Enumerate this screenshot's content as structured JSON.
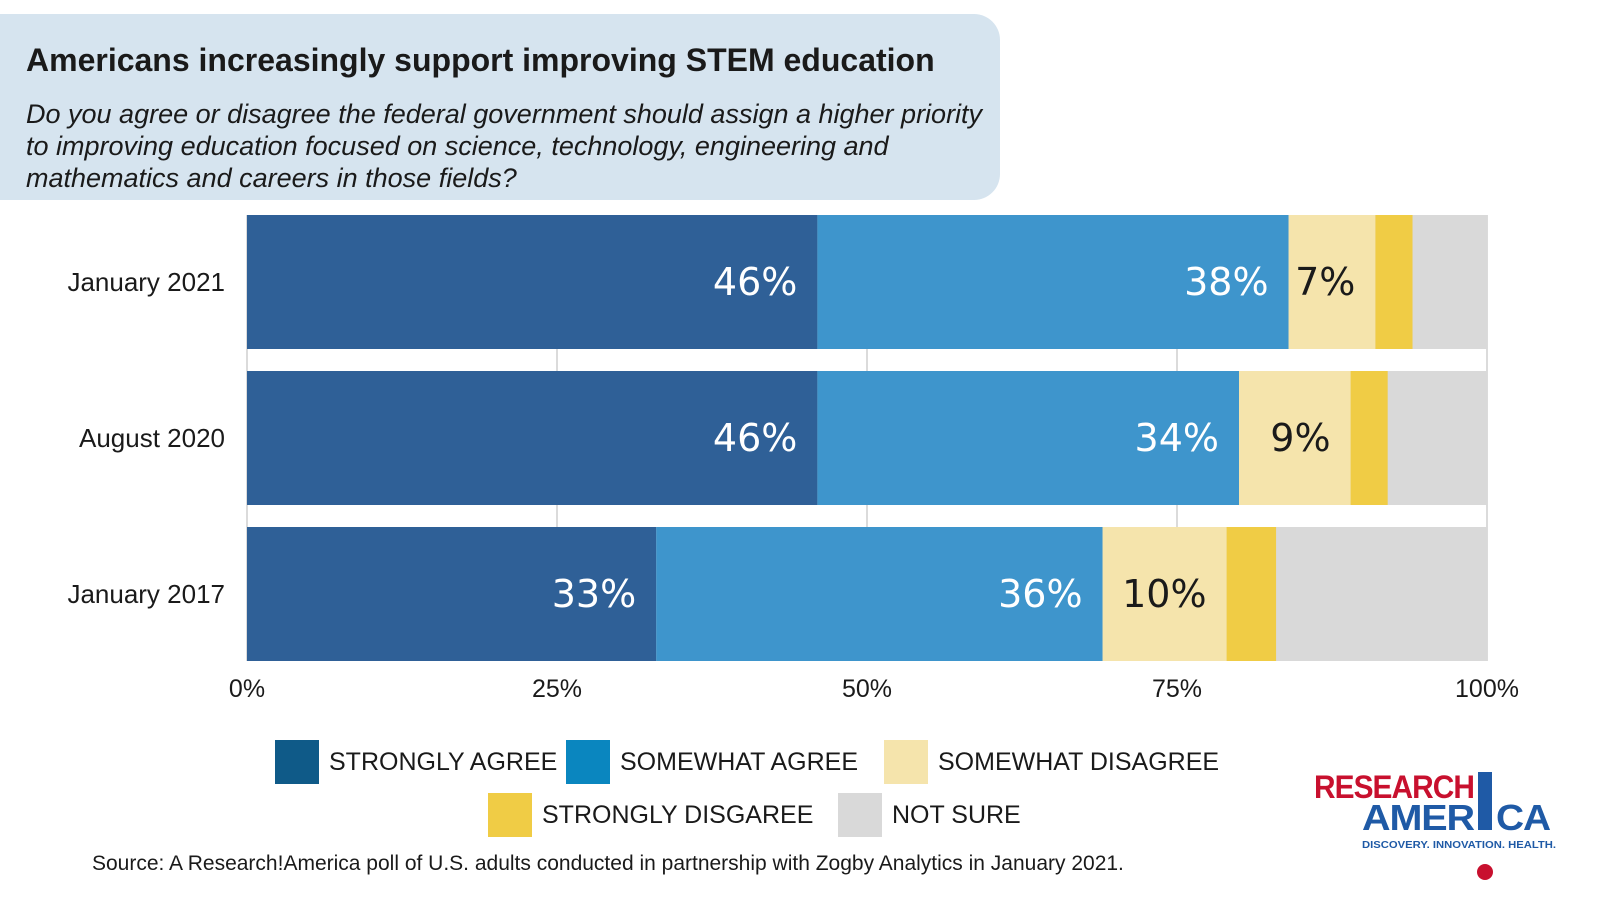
{
  "header": {
    "title": "Americans increasingly support improving STEM education",
    "subtitle": "Do you agree or disagree the federal government should assign a higher priority to improving education focused on science, technology, engineering and mathematics and careers in those fields?"
  },
  "chart_data": {
    "type": "bar",
    "orientation": "horizontal",
    "stacked": true,
    "categories": [
      "January 2021",
      "August 2020",
      "January 2017"
    ],
    "series": [
      {
        "name": "STRONGLY AGREE",
        "color": "#2f6097",
        "label_color": "#ffffff",
        "values": [
          46,
          46,
          33
        ],
        "labels": [
          "46%",
          "46%",
          "33%"
        ]
      },
      {
        "name": "SOMEWHAT AGREE",
        "color": "#3e95cc",
        "label_color": "#ffffff",
        "values": [
          38,
          34,
          36
        ],
        "labels": [
          "38%",
          "34%",
          "36%"
        ]
      },
      {
        "name": "SOMEWHAT DISAGREE",
        "color": "#f5e4ac",
        "label_color": "#1a1a1a",
        "values": [
          7,
          9,
          10
        ],
        "labels": [
          "7%",
          "9%",
          "10%"
        ]
      },
      {
        "name": "STRONGLY DISGAREE",
        "color": "#f0cc45",
        "label_color": "#1a1a1a",
        "values": [
          3,
          3,
          4
        ],
        "labels": [
          "",
          "",
          ""
        ]
      },
      {
        "name": "NOT SURE",
        "color": "#d9d9d9",
        "label_color": "#1a1a1a",
        "values": [
          6,
          8,
          17
        ],
        "labels": [
          "",
          "",
          ""
        ]
      }
    ],
    "x_ticks": [
      "0%",
      "25%",
      "50%",
      "75%",
      "100%"
    ],
    "xlim": [
      0,
      100
    ],
    "grid": true,
    "legend_placement": "bottom"
  },
  "legend": {
    "swatch_colors": [
      "#0f5a88",
      "#0a86bf",
      "#f5e4ac",
      "#f0cc45",
      "#d9d9d9"
    ],
    "labels": [
      "STRONGLY AGREE",
      "SOMEWHAT AGREE",
      "SOMEWHAT DISAGREE",
      "STRONGLY DISGAREE",
      "NOT SURE"
    ]
  },
  "source": "Source:  A Research!America poll of U.S. adults conducted in partnership with Zogby Analytics in January 2021.",
  "logo": {
    "line1": "RESEARCH",
    "line2_left": "AMER",
    "line2_right": "CA",
    "tagline": "DISCOVERY. INNOVATION. HEALTH.",
    "red": "#c8102e",
    "blue": "#1f5aa6"
  }
}
